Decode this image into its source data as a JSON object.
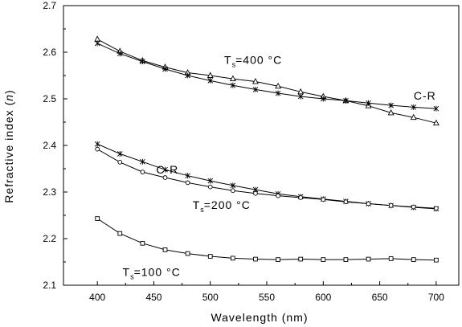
{
  "chart_data": {
    "type": "line",
    "title": "",
    "xlabel": "Wavelength (nm)",
    "ylabel": "Refractive index (n)",
    "ylabel_parts": {
      "prefix": "Refractive index (",
      "italic": "n",
      "suffix": ")"
    },
    "xlim": [
      370,
      720
    ],
    "ylim": [
      2.1,
      2.7
    ],
    "xticks": [
      400,
      450,
      500,
      550,
      600,
      650,
      700
    ],
    "yticks": [
      2.1,
      2.2,
      2.3,
      2.4,
      2.5,
      2.6,
      2.7
    ],
    "grid": false,
    "legend": "none",
    "x": [
      400,
      420,
      440,
      460,
      480,
      500,
      520,
      540,
      560,
      580,
      600,
      620,
      640,
      660,
      680,
      700
    ],
    "series": [
      {
        "marker": "triangle",
        "values": [
          2.628,
          2.602,
          2.582,
          2.568,
          2.556,
          2.55,
          2.543,
          2.537,
          2.527,
          2.515,
          2.505,
          2.496,
          2.485,
          2.47,
          2.46,
          2.448
        ]
      },
      {
        "marker": "star",
        "values": [
          2.619,
          2.597,
          2.58,
          2.564,
          2.55,
          2.539,
          2.529,
          2.52,
          2.512,
          2.505,
          2.5,
          2.496,
          2.491,
          2.486,
          2.482,
          2.479
        ]
      },
      {
        "marker": "star",
        "values": [
          2.403,
          2.382,
          2.365,
          2.348,
          2.335,
          2.324,
          2.314,
          2.305,
          2.296,
          2.29,
          2.285,
          2.28,
          2.275,
          2.271,
          2.267,
          2.264
        ]
      },
      {
        "marker": "circle",
        "values": [
          2.392,
          2.364,
          2.343,
          2.331,
          2.32,
          2.311,
          2.303,
          2.297,
          2.292,
          2.288,
          2.284,
          2.279,
          2.275,
          2.271,
          2.268,
          2.265
        ]
      },
      {
        "marker": "square",
        "values": [
          2.243,
          2.211,
          2.19,
          2.176,
          2.168,
          2.162,
          2.158,
          2.156,
          2.155,
          2.156,
          2.155,
          2.155,
          2.156,
          2.157,
          2.155,
          2.154
        ]
      }
    ],
    "annotations": [
      {
        "main": "T",
        "sub": "s",
        "rest": "=400 °C",
        "x": 538,
        "y": 2.575
      },
      {
        "main": "C-R",
        "sub": "",
        "rest": "",
        "x": 690,
        "y": 2.498
      },
      {
        "main": "C-R",
        "sub": "",
        "rest": "",
        "x": 462,
        "y": 2.34
      },
      {
        "main": "T",
        "sub": "s",
        "rest": "=200 °C",
        "x": 510,
        "y": 2.264
      },
      {
        "main": "T",
        "sub": "s",
        "rest": "=100 °C",
        "x": 448,
        "y": 2.12
      }
    ]
  }
}
